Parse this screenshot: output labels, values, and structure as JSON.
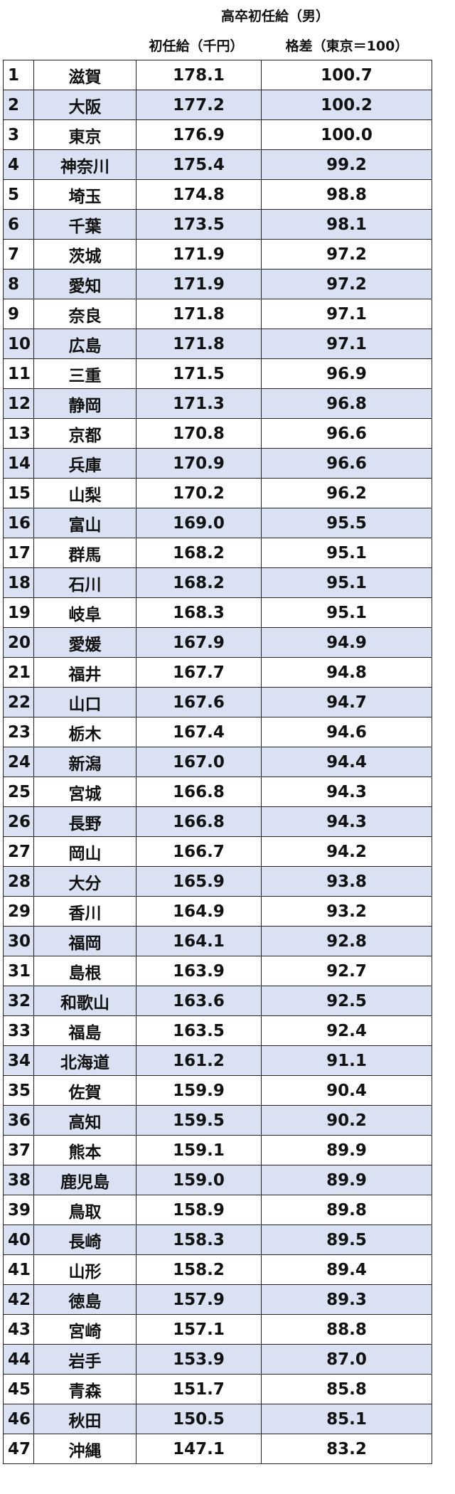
{
  "header": {
    "title": "高卒初任給（男）",
    "columns": [
      "初任給（千円）",
      "格差（東京＝100）"
    ]
  },
  "table": {
    "rows": [
      [
        "1",
        "滋賀",
        "178.1",
        "100.7"
      ],
      [
        "2",
        "大阪",
        "177.2",
        "100.2"
      ],
      [
        "3",
        "東京",
        "176.9",
        "100.0"
      ],
      [
        "4",
        "神奈川",
        "175.4",
        "99.2"
      ],
      [
        "5",
        "埼玉",
        "174.8",
        "98.8"
      ],
      [
        "6",
        "千葉",
        "173.5",
        "98.1"
      ],
      [
        "7",
        "茨城",
        "171.9",
        "97.2"
      ],
      [
        "8",
        "愛知",
        "171.9",
        "97.2"
      ],
      [
        "9",
        "奈良",
        "171.8",
        "97.1"
      ],
      [
        "10",
        "広島",
        "171.8",
        "97.1"
      ],
      [
        "11",
        "三重",
        "171.5",
        "96.9"
      ],
      [
        "12",
        "静岡",
        "171.3",
        "96.8"
      ],
      [
        "13",
        "京都",
        "170.8",
        "96.6"
      ],
      [
        "14",
        "兵庫",
        "170.9",
        "96.6"
      ],
      [
        "15",
        "山梨",
        "170.2",
        "96.2"
      ],
      [
        "16",
        "富山",
        "169.0",
        "95.5"
      ],
      [
        "17",
        "群馬",
        "168.2",
        "95.1"
      ],
      [
        "18",
        "石川",
        "168.2",
        "95.1"
      ],
      [
        "19",
        "岐阜",
        "168.3",
        "95.1"
      ],
      [
        "20",
        "愛媛",
        "167.9",
        "94.9"
      ],
      [
        "21",
        "福井",
        "167.7",
        "94.8"
      ],
      [
        "22",
        "山口",
        "167.6",
        "94.7"
      ],
      [
        "23",
        "栃木",
        "167.4",
        "94.6"
      ],
      [
        "24",
        "新潟",
        "167.0",
        "94.4"
      ],
      [
        "25",
        "宮城",
        "166.8",
        "94.3"
      ],
      [
        "26",
        "長野",
        "166.8",
        "94.3"
      ],
      [
        "27",
        "岡山",
        "166.7",
        "94.2"
      ],
      [
        "28",
        "大分",
        "165.9",
        "93.8"
      ],
      [
        "29",
        "香川",
        "164.9",
        "93.2"
      ],
      [
        "30",
        "福岡",
        "164.1",
        "92.8"
      ],
      [
        "31",
        "島根",
        "163.9",
        "92.7"
      ],
      [
        "32",
        "和歌山",
        "163.6",
        "92.5"
      ],
      [
        "33",
        "福島",
        "163.5",
        "92.4"
      ],
      [
        "34",
        "北海道",
        "161.2",
        "91.1"
      ],
      [
        "35",
        "佐賀",
        "159.9",
        "90.4"
      ],
      [
        "36",
        "高知",
        "159.5",
        "90.2"
      ],
      [
        "37",
        "熊本",
        "159.1",
        "89.9"
      ],
      [
        "38",
        "鹿児島",
        "159.0",
        "89.9"
      ],
      [
        "39",
        "鳥取",
        "158.9",
        "89.8"
      ],
      [
        "40",
        "長崎",
        "158.3",
        "89.5"
      ],
      [
        "41",
        "山形",
        "158.2",
        "89.4"
      ],
      [
        "42",
        "徳島",
        "157.9",
        "89.3"
      ],
      [
        "43",
        "宮崎",
        "157.1",
        "88.8"
      ],
      [
        "44",
        "岩手",
        "153.9",
        "87.0"
      ],
      [
        "45",
        "青森",
        "151.7",
        "85.8"
      ],
      [
        "46",
        "秋田",
        "150.5",
        "85.1"
      ],
      [
        "47",
        "沖縄",
        "147.1",
        "83.2"
      ]
    ]
  }
}
